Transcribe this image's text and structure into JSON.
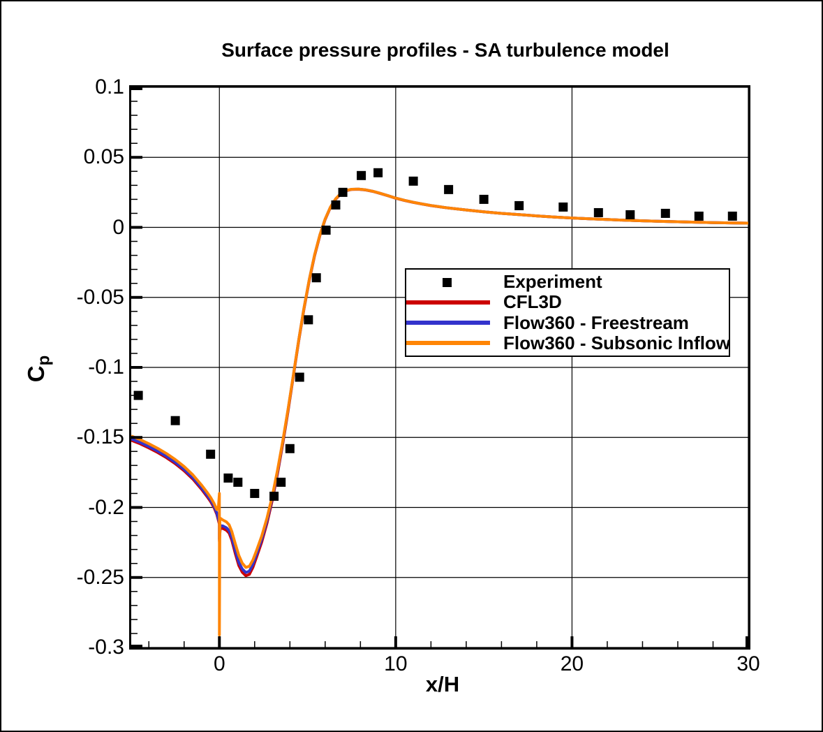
{
  "chart_data": {
    "type": "line",
    "title": "Surface pressure profiles - SA turbulence model",
    "grid": {
      "show": true,
      "color": "#000000",
      "at": "major-ticks"
    },
    "legend": {
      "position": "inside-right-middle",
      "border": "#000000",
      "background": "#ffffff"
    },
    "axes": {
      "x": {
        "label": "x/H",
        "min": -5,
        "max": 30,
        "major_ticks": [
          0,
          10,
          20,
          30
        ],
        "major_tick_labels": [
          "0",
          "10",
          "20",
          "30"
        ],
        "minor_tick_step": 2
      },
      "y": {
        "label": "Cp",
        "label_main": "C",
        "label_sub": "p",
        "min": -0.3,
        "max": 0.1,
        "major_ticks": [
          0.1,
          0.05,
          0,
          -0.05,
          -0.1,
          -0.15,
          -0.2,
          -0.25,
          -0.3
        ],
        "major_tick_labels": [
          "0.1",
          "0.05",
          "0",
          "-0.05",
          "-0.1",
          "-0.15",
          "-0.2",
          "-0.25",
          "-0.3"
        ],
        "minor_tick_step": 0.01
      }
    },
    "series": [
      {
        "name": "Experiment",
        "type": "scatter",
        "marker": "filled-square",
        "color": "#000000",
        "points": [
          [
            -4.6,
            -0.12
          ],
          [
            -2.5,
            -0.138
          ],
          [
            -0.5,
            -0.162
          ],
          [
            0.5,
            -0.179
          ],
          [
            1.05,
            -0.182
          ],
          [
            2.0,
            -0.19
          ],
          [
            3.1,
            -0.192
          ],
          [
            3.5,
            -0.182
          ],
          [
            4.0,
            -0.158
          ],
          [
            4.55,
            -0.107
          ],
          [
            5.05,
            -0.066
          ],
          [
            5.5,
            -0.036
          ],
          [
            6.05,
            -0.002
          ],
          [
            6.6,
            0.016
          ],
          [
            7.0,
            0.025
          ],
          [
            8.05,
            0.037
          ],
          [
            9.0,
            0.039
          ],
          [
            11.0,
            0.033
          ],
          [
            13.0,
            0.027
          ],
          [
            15.0,
            0.02
          ],
          [
            17.0,
            0.0155
          ],
          [
            19.5,
            0.0145
          ],
          [
            21.5,
            0.0105
          ],
          [
            23.3,
            0.009
          ],
          [
            25.3,
            0.01
          ],
          [
            27.2,
            0.008
          ],
          [
            29.1,
            0.008
          ]
        ]
      },
      {
        "name": "CFL3D",
        "type": "line",
        "color": "#cc0000",
        "points": [
          [
            -5,
            -0.152
          ],
          [
            -4.5,
            -0.1545
          ],
          [
            -4,
            -0.1575
          ],
          [
            -3.5,
            -0.1608
          ],
          [
            -3,
            -0.1645
          ],
          [
            -2.5,
            -0.1688
          ],
          [
            -2,
            -0.1738
          ],
          [
            -1.5,
            -0.1798
          ],
          [
            -1,
            -0.1872
          ],
          [
            -0.7,
            -0.1922
          ],
          [
            -0.5,
            -0.1958
          ],
          [
            -0.3,
            -0.2002
          ],
          [
            -0.15,
            -0.2048
          ],
          [
            -0.05,
            -0.2095
          ],
          [
            0,
            -0.212
          ],
          [
            0,
            -0.224
          ],
          [
            0.05,
            -0.2148
          ],
          [
            0.2,
            -0.215
          ],
          [
            0.4,
            -0.2163
          ],
          [
            0.55,
            -0.2183
          ],
          [
            0.7,
            -0.2233
          ],
          [
            0.9,
            -0.2328
          ],
          [
            1.1,
            -0.2415
          ],
          [
            1.3,
            -0.2463
          ],
          [
            1.5,
            -0.2488
          ],
          [
            1.7,
            -0.2478
          ],
          [
            1.9,
            -0.2428
          ],
          [
            2.1,
            -0.2358
          ],
          [
            2.4,
            -0.2248
          ],
          [
            2.7,
            -0.2112
          ],
          [
            3,
            -0.1948
          ],
          [
            3.3,
            -0.1758
          ],
          [
            3.6,
            -0.1542
          ],
          [
            3.9,
            -0.1308
          ],
          [
            4.2,
            -0.1058
          ],
          [
            4.5,
            -0.0812
          ],
          [
            4.8,
            -0.0582
          ],
          [
            5.1,
            -0.0378
          ],
          [
            5.4,
            -0.0202
          ],
          [
            5.7,
            -0.0058
          ],
          [
            6,
            0.0056
          ],
          [
            6.3,
            0.0142
          ],
          [
            6.6,
            0.0202
          ],
          [
            6.9,
            0.0241
          ],
          [
            7.2,
            0.0262
          ],
          [
            7.5,
            0.0271
          ],
          [
            7.9,
            0.0272
          ],
          [
            8.3,
            0.0267
          ],
          [
            8.7,
            0.0257
          ],
          [
            9.1,
            0.0243
          ],
          [
            9.6,
            0.0224
          ],
          [
            10,
            0.0208
          ],
          [
            10.5,
            0.0192
          ],
          [
            11,
            0.0178
          ],
          [
            11.5,
            0.0166
          ],
          [
            12,
            0.0155
          ],
          [
            12.5,
            0.0146
          ],
          [
            13,
            0.0138
          ],
          [
            14,
            0.0124
          ],
          [
            15,
            0.0111
          ],
          [
            16,
            0.01
          ],
          [
            17,
            0.0091
          ],
          [
            18,
            0.0082
          ],
          [
            19,
            0.0074
          ],
          [
            20,
            0.0067
          ],
          [
            21,
            0.0061
          ],
          [
            22,
            0.0056
          ],
          [
            23,
            0.0051
          ],
          [
            24,
            0.0047
          ],
          [
            25,
            0.0043
          ],
          [
            26,
            0.004
          ],
          [
            27,
            0.0037
          ],
          [
            28,
            0.0034
          ],
          [
            29,
            0.0032
          ],
          [
            30,
            0.003
          ]
        ]
      },
      {
        "name": "Flow360 - Freestream",
        "type": "line",
        "color": "#3333cc",
        "points": [
          [
            -5,
            -0.151
          ],
          [
            -4.5,
            -0.1535
          ],
          [
            -4,
            -0.1565
          ],
          [
            -3.5,
            -0.1598
          ],
          [
            -3,
            -0.1635
          ],
          [
            -2.5,
            -0.1678
          ],
          [
            -2,
            -0.1728
          ],
          [
            -1.5,
            -0.1788
          ],
          [
            -1,
            -0.1862
          ],
          [
            -0.7,
            -0.1912
          ],
          [
            -0.5,
            -0.1948
          ],
          [
            -0.3,
            -0.1992
          ],
          [
            -0.15,
            -0.2038
          ],
          [
            -0.05,
            -0.2085
          ],
          [
            0,
            -0.2105
          ],
          [
            0,
            -0.2225
          ],
          [
            0.05,
            -0.213
          ],
          [
            0.2,
            -0.2132
          ],
          [
            0.4,
            -0.2145
          ],
          [
            0.55,
            -0.2165
          ],
          [
            0.7,
            -0.2213
          ],
          [
            0.9,
            -0.2306
          ],
          [
            1.1,
            -0.2392
          ],
          [
            1.3,
            -0.244
          ],
          [
            1.5,
            -0.2465
          ],
          [
            1.7,
            -0.2455
          ],
          [
            1.9,
            -0.2406
          ],
          [
            2.1,
            -0.2337
          ],
          [
            2.4,
            -0.2228
          ],
          [
            2.7,
            -0.2094
          ],
          [
            3,
            -0.1932
          ],
          [
            3.3,
            -0.1744
          ],
          [
            3.6,
            -0.153
          ],
          [
            3.9,
            -0.1298
          ],
          [
            4.2,
            -0.1052
          ],
          [
            4.5,
            -0.0806
          ],
          [
            4.8,
            -0.0576
          ],
          [
            5.1,
            -0.0372
          ],
          [
            5.4,
            -0.0197
          ],
          [
            5.7,
            -0.0054
          ],
          [
            6,
            0.0059
          ],
          [
            6.3,
            0.0144
          ],
          [
            6.6,
            0.0204
          ],
          [
            6.9,
            0.0243
          ],
          [
            7.2,
            0.0263
          ],
          [
            7.5,
            0.0272
          ],
          [
            7.9,
            0.0273
          ],
          [
            8.3,
            0.0268
          ],
          [
            8.7,
            0.0258
          ],
          [
            9.1,
            0.0244
          ],
          [
            9.6,
            0.0225
          ],
          [
            10,
            0.0209
          ],
          [
            10.5,
            0.0193
          ],
          [
            11,
            0.0179
          ],
          [
            11.5,
            0.0167
          ],
          [
            12,
            0.0156
          ],
          [
            12.5,
            0.0147
          ],
          [
            13,
            0.0138
          ],
          [
            14,
            0.0124
          ],
          [
            15,
            0.0111
          ],
          [
            16,
            0.01
          ],
          [
            17,
            0.0091
          ],
          [
            18,
            0.0082
          ],
          [
            19,
            0.0074
          ],
          [
            20,
            0.0067
          ],
          [
            21,
            0.0061
          ],
          [
            22,
            0.0056
          ],
          [
            23,
            0.0051
          ],
          [
            24,
            0.0047
          ],
          [
            25,
            0.0043
          ],
          [
            26,
            0.004
          ],
          [
            27,
            0.0037
          ],
          [
            28,
            0.0034
          ],
          [
            29,
            0.0032
          ],
          [
            30,
            0.003
          ]
        ]
      },
      {
        "name": "Flow360 - Subsonic Inflow",
        "type": "line",
        "color": "#ff8505",
        "points": [
          [
            -5,
            -0.149
          ],
          [
            -4.5,
            -0.1515
          ],
          [
            -4,
            -0.1545
          ],
          [
            -3.5,
            -0.1578
          ],
          [
            -3,
            -0.1615
          ],
          [
            -2.5,
            -0.1658
          ],
          [
            -2,
            -0.1708
          ],
          [
            -1.5,
            -0.1768
          ],
          [
            -1,
            -0.1842
          ],
          [
            -0.7,
            -0.1892
          ],
          [
            -0.5,
            -0.1928
          ],
          [
            -0.3,
            -0.1972
          ],
          [
            -0.15,
            -0.2015
          ],
          [
            -0.05,
            -0.199
          ],
          [
            0,
            -0.19
          ],
          [
            0,
            -0.291
          ],
          [
            0.03,
            -0.2075
          ],
          [
            0.2,
            -0.209
          ],
          [
            0.4,
            -0.2103
          ],
          [
            0.55,
            -0.2123
          ],
          [
            0.7,
            -0.217
          ],
          [
            0.9,
            -0.2258
          ],
          [
            1.1,
            -0.2342
          ],
          [
            1.3,
            -0.2398
          ],
          [
            1.5,
            -0.2428
          ],
          [
            1.7,
            -0.242
          ],
          [
            1.9,
            -0.2375
          ],
          [
            2.1,
            -0.231
          ],
          [
            2.4,
            -0.2205
          ],
          [
            2.7,
            -0.2075
          ],
          [
            3,
            -0.1918
          ],
          [
            3.3,
            -0.1732
          ],
          [
            3.6,
            -0.1522
          ],
          [
            3.9,
            -0.1294
          ],
          [
            4.2,
            -0.105
          ],
          [
            4.5,
            -0.0805
          ],
          [
            4.8,
            -0.0575
          ],
          [
            5.1,
            -0.0371
          ],
          [
            5.4,
            -0.0196
          ],
          [
            5.7,
            -0.0053
          ],
          [
            6,
            0.006
          ],
          [
            6.3,
            0.0145
          ],
          [
            6.6,
            0.0205
          ],
          [
            6.9,
            0.0244
          ],
          [
            7.2,
            0.0264
          ],
          [
            7.5,
            0.0272
          ],
          [
            7.9,
            0.0273
          ],
          [
            8.3,
            0.0268
          ],
          [
            8.7,
            0.0258
          ],
          [
            9.1,
            0.0244
          ],
          [
            9.6,
            0.0225
          ],
          [
            10,
            0.0209
          ],
          [
            10.5,
            0.0193
          ],
          [
            11,
            0.0179
          ],
          [
            11.5,
            0.0167
          ],
          [
            12,
            0.0156
          ],
          [
            12.5,
            0.0147
          ],
          [
            13,
            0.0138
          ],
          [
            14,
            0.0124
          ],
          [
            15,
            0.0111
          ],
          [
            16,
            0.01
          ],
          [
            17,
            0.0091
          ],
          [
            18,
            0.0082
          ],
          [
            19,
            0.0074
          ],
          [
            20,
            0.0067
          ],
          [
            21,
            0.0061
          ],
          [
            22,
            0.0056
          ],
          [
            23,
            0.0051
          ],
          [
            24,
            0.0047
          ],
          [
            25,
            0.0043
          ],
          [
            26,
            0.004
          ],
          [
            27,
            0.0037
          ],
          [
            28,
            0.0034
          ],
          [
            29,
            0.0032
          ],
          [
            30,
            0.003
          ]
        ]
      }
    ]
  }
}
